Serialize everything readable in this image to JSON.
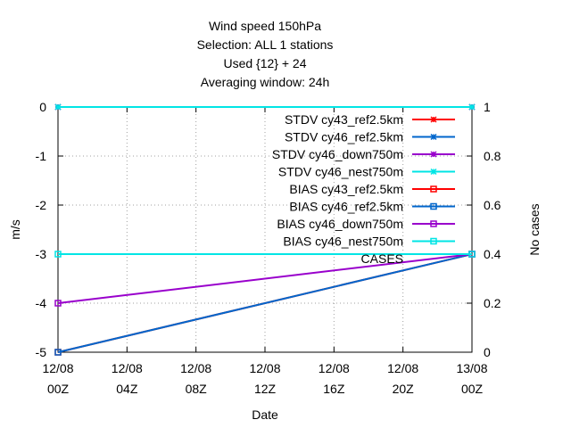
{
  "chart_data": {
    "type": "line",
    "title": [
      "Wind speed 150hPa",
      "Selection: ALL      1 stations",
      "Used {12} + 24",
      "Averaging window: 24h"
    ],
    "xlabel": "Date",
    "ylabel": "m/s",
    "y2label": "No cases",
    "x": [
      "12/08 00Z",
      "12/08 04Z",
      "12/08 08Z",
      "12/08 12Z",
      "12/08 16Z",
      "12/08 20Z",
      "13/08 00Z"
    ],
    "xticks": [
      {
        "line1": "12/08",
        "line2": "00Z"
      },
      {
        "line1": "12/08",
        "line2": "04Z"
      },
      {
        "line1": "12/08",
        "line2": "08Z"
      },
      {
        "line1": "12/08",
        "line2": "12Z"
      },
      {
        "line1": "12/08",
        "line2": "16Z"
      },
      {
        "line1": "12/08",
        "line2": "20Z"
      },
      {
        "line1": "13/08",
        "line2": "00Z"
      }
    ],
    "ylim": [
      -5,
      0
    ],
    "yticks": [
      0,
      -1,
      -2,
      -3,
      -4,
      -5
    ],
    "y2lim": [
      0,
      1
    ],
    "y2ticks": [
      1,
      0.8,
      0.6,
      0.4,
      0.2,
      0
    ],
    "grid": true,
    "legend_position": "top-right",
    "series": [
      {
        "name": "STDV cy43_ref2.5km",
        "color": "#ff0000",
        "marker": "x",
        "axis": "y",
        "points": [
          [
            0,
            0
          ],
          [
            6,
            0
          ]
        ]
      },
      {
        "name": "STDV cy46_ref2.5km",
        "color": "#0066cc",
        "marker": "x",
        "axis": "y",
        "points": [
          [
            0,
            0
          ],
          [
            6,
            0
          ]
        ]
      },
      {
        "name": "STDV cy46_down750m",
        "color": "#9900cc",
        "marker": "x",
        "axis": "y",
        "points": [
          [
            0,
            0
          ],
          [
            6,
            0
          ]
        ]
      },
      {
        "name": "STDV cy46_nest750m",
        "color": "#00e5e5",
        "marker": "x",
        "axis": "y",
        "points": [
          [
            0,
            0
          ],
          [
            6,
            0
          ]
        ]
      },
      {
        "name": "BIAS cy43_ref2.5km",
        "color": "#ff0000",
        "marker": "square",
        "axis": "y",
        "points": [
          [
            0,
            -5
          ],
          [
            6,
            -3
          ]
        ]
      },
      {
        "name": "BIAS cy46_ref2.5km",
        "color": "#0066cc",
        "marker": "square",
        "axis": "y",
        "points": [
          [
            0,
            -5
          ],
          [
            6,
            -3
          ]
        ]
      },
      {
        "name": "BIAS cy46_down750m",
        "color": "#9900cc",
        "marker": "square",
        "axis": "y",
        "points": [
          [
            0,
            -4
          ],
          [
            6,
            -3
          ]
        ]
      },
      {
        "name": "BIAS cy46_nest750m",
        "color": "#00e5e5",
        "marker": "square",
        "axis": "y",
        "points": [
          [
            0,
            -3
          ],
          [
            6,
            -3
          ]
        ]
      },
      {
        "name": "CASES",
        "color": "#808080",
        "marker": "none",
        "axis": "y2",
        "points": [
          [
            6,
            0.4
          ]
        ]
      }
    ]
  }
}
